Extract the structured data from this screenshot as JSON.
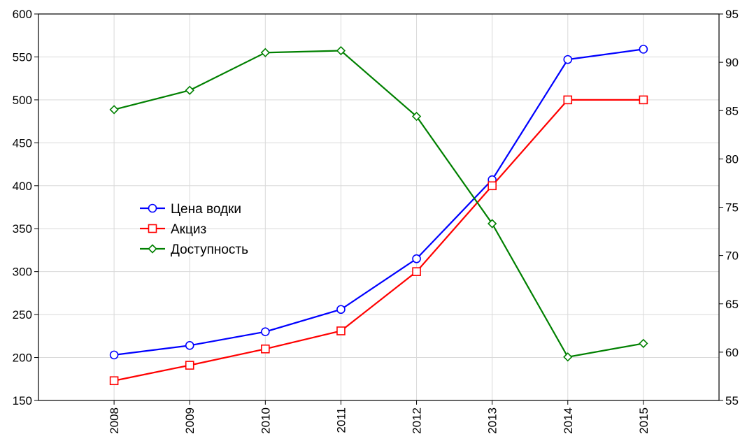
{
  "chart_data": {
    "type": "line",
    "title": "",
    "xlabel": "",
    "ylabel": "",
    "y2label": "",
    "x": [
      "2008",
      "2009",
      "2010",
      "2011",
      "2012",
      "2013",
      "2014",
      "2015"
    ],
    "ylim": [
      150,
      600
    ],
    "y_ticks": [
      150,
      200,
      250,
      300,
      350,
      400,
      450,
      500,
      550,
      600
    ],
    "y2lim": [
      55,
      95
    ],
    "y2_ticks": [
      55,
      60,
      65,
      70,
      75,
      80,
      85,
      90,
      95
    ],
    "grid": true,
    "legend_position": "center-left",
    "series": [
      {
        "name": "Цена водки",
        "axis": "left",
        "color": "#0000ff",
        "marker": "circle",
        "values": [
          203,
          214,
          230,
          256,
          315,
          407,
          547,
          559
        ]
      },
      {
        "name": "Акциз",
        "axis": "left",
        "color": "#ff0000",
        "marker": "square",
        "values": [
          173,
          191,
          210,
          231,
          300,
          400,
          500,
          500
        ]
      },
      {
        "name": "Доступность",
        "axis": "right",
        "color": "#008000",
        "marker": "diamond",
        "values": [
          85.1,
          87.1,
          91.0,
          91.2,
          84.4,
          73.3,
          59.5,
          60.9
        ]
      }
    ]
  }
}
